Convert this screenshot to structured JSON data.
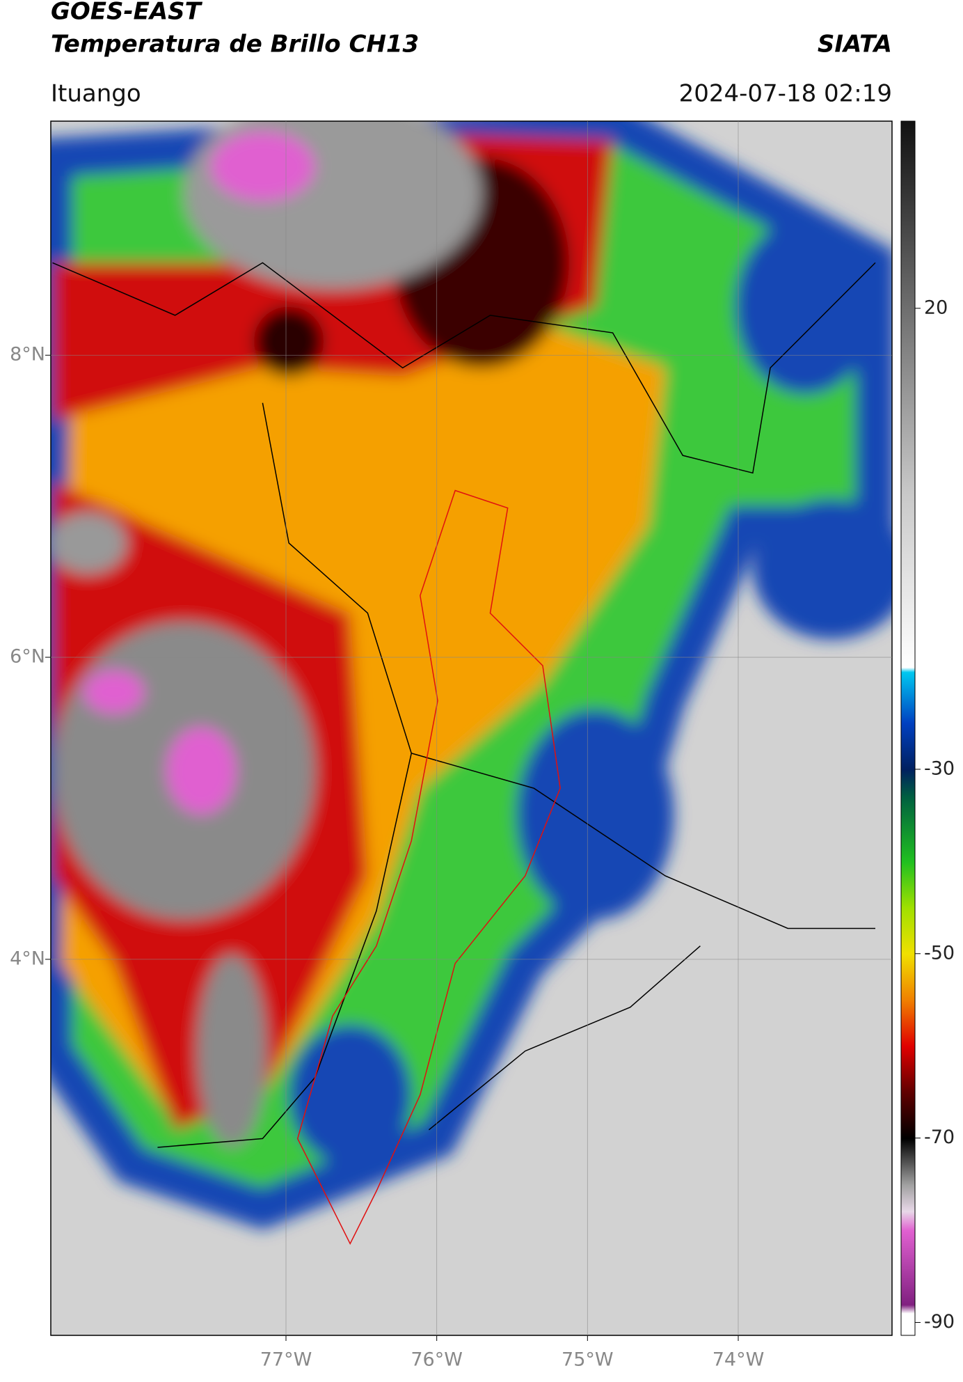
{
  "header": {
    "title": "GOES-EAST",
    "subtitle": "Temperatura de Brillo CH13",
    "agency": "SIATA",
    "location": "Ituango",
    "timestamp": "2024-07-18 02:19"
  },
  "map": {
    "xlim": [
      -78.56,
      -72.98
    ],
    "ylim": [
      1.51,
      9.55
    ],
    "xticks": [
      {
        "value": -77,
        "label": "77°W"
      },
      {
        "value": -76,
        "label": "76°W"
      },
      {
        "value": -75,
        "label": "75°W"
      },
      {
        "value": -74,
        "label": "74°W"
      }
    ],
    "yticks": [
      {
        "value": 8,
        "label": "8°N"
      },
      {
        "value": 6,
        "label": "6°N"
      },
      {
        "value": 4,
        "label": "4°N"
      }
    ],
    "grid": true
  },
  "colorbar": {
    "lim": [
      -91.4,
      40.3
    ],
    "ticks": [
      20,
      -30,
      -50,
      -70,
      -90
    ]
  }
}
